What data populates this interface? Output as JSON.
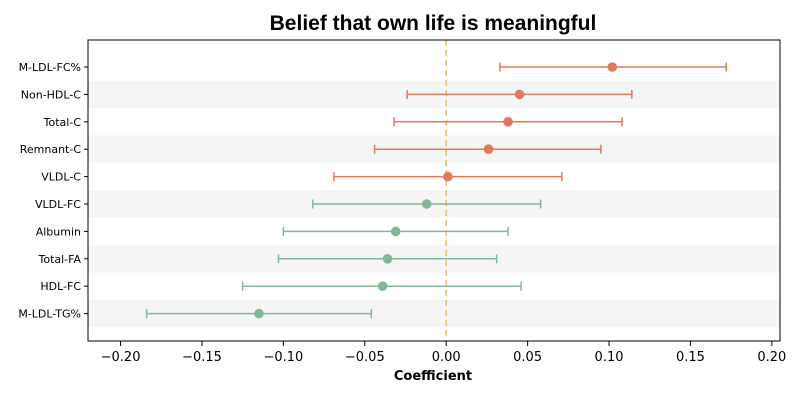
{
  "chart_data": {
    "type": "scatter",
    "title": "Belief that own life is meaningful",
    "xlabel": "Coefficient",
    "ylabel": "",
    "xlim": [
      -0.22,
      0.205
    ],
    "xticks": [
      -0.2,
      -0.15,
      -0.1,
      -0.05,
      0.0,
      0.05,
      0.1,
      0.15,
      0.2
    ],
    "xtick_labels": [
      "−0.20",
      "−0.15",
      "−0.10",
      "−0.05",
      "0.00",
      "0.05",
      "0.10",
      "0.15",
      "0.20"
    ],
    "reference_line": 0,
    "colors": {
      "positive": "#E07B5A",
      "negative": "#82B89A",
      "reference": "#E8C170",
      "stripe": "#f5f5f5"
    },
    "grid": false,
    "points": [
      {
        "label": "M-LDL-FC%",
        "estimate": 0.102,
        "ci_low": 0.033,
        "ci_high": 0.172
      },
      {
        "label": "Non-HDL-C",
        "estimate": 0.045,
        "ci_low": -0.024,
        "ci_high": 0.114
      },
      {
        "label": "Total-C",
        "estimate": 0.038,
        "ci_low": -0.032,
        "ci_high": 0.108
      },
      {
        "label": "Remnant-C",
        "estimate": 0.026,
        "ci_low": -0.044,
        "ci_high": 0.095
      },
      {
        "label": "VLDL-C",
        "estimate": 0.001,
        "ci_low": -0.069,
        "ci_high": 0.071
      },
      {
        "label": "VLDL-FC",
        "estimate": -0.012,
        "ci_low": -0.082,
        "ci_high": 0.058
      },
      {
        "label": "Albumin",
        "estimate": -0.031,
        "ci_low": -0.1,
        "ci_high": 0.038
      },
      {
        "label": "Total-FA",
        "estimate": -0.036,
        "ci_low": -0.103,
        "ci_high": 0.031
      },
      {
        "label": "HDL-FC",
        "estimate": -0.039,
        "ci_low": -0.125,
        "ci_high": 0.046
      },
      {
        "label": "M-LDL-TG%",
        "estimate": -0.115,
        "ci_low": -0.184,
        "ci_high": -0.046
      }
    ]
  }
}
